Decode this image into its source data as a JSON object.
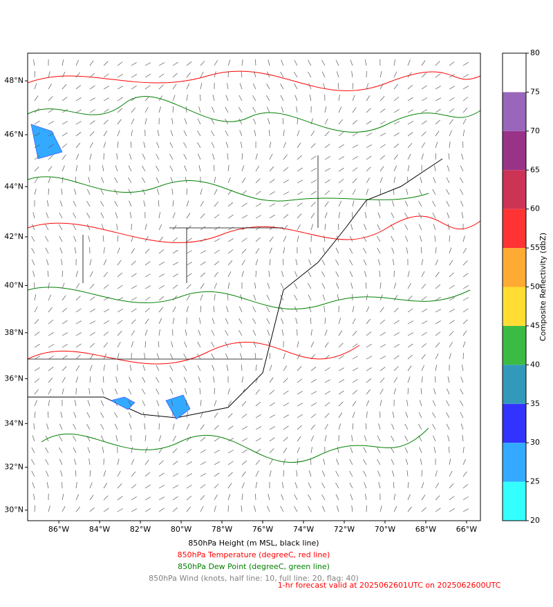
{
  "map": {
    "lon_range": [
      -87.53,
      -65.32
    ],
    "lat_range": [
      29.5,
      49.0
    ],
    "lon_ticks": [
      {
        "value": -86,
        "label": "86°W"
      },
      {
        "value": -84,
        "label": "84°W"
      },
      {
        "value": -82,
        "label": "82°W"
      },
      {
        "value": -80,
        "label": "80°W"
      },
      {
        "value": -78,
        "label": "78°W"
      },
      {
        "value": -76,
        "label": "76°W"
      },
      {
        "value": -74,
        "label": "74°W"
      },
      {
        "value": -72,
        "label": "72°W"
      },
      {
        "value": -70,
        "label": "70°W"
      },
      {
        "value": -68,
        "label": "68°W"
      },
      {
        "value": -66,
        "label": "66°W"
      }
    ],
    "lat_ticks": [
      {
        "value": 48,
        "label": "48°N"
      },
      {
        "value": 46,
        "label": "46°N"
      },
      {
        "value": 44,
        "label": "44°N"
      },
      {
        "value": 42,
        "label": "42°N"
      },
      {
        "value": 40,
        "label": "40°N"
      },
      {
        "value": 38,
        "label": "38°N"
      },
      {
        "value": 36,
        "label": "36°N"
      },
      {
        "value": 34,
        "label": "34°N"
      },
      {
        "value": 32,
        "label": "32°N"
      },
      {
        "value": 30,
        "label": "30°N"
      }
    ]
  },
  "colorbar": {
    "label": "Composite Reflectivity (dbZ)",
    "ticks": [
      20,
      25,
      30,
      35,
      40,
      45,
      50,
      55,
      60,
      65,
      70,
      75,
      80
    ],
    "colors": [
      "#33ffff",
      "#33aaff",
      "#3333ff",
      "#3399bb",
      "#3bbb44",
      "#ffdd33",
      "#ffaa33",
      "#ff3333",
      "#cc3355",
      "#993388",
      "#9966bb",
      "#ffffff"
    ]
  },
  "captions": [
    {
      "text": "850hPa Height (m MSL, black line)",
      "color": "#000000"
    },
    {
      "text": "850hPa Temperature (degreeC, red line)",
      "color": "#ff0000"
    },
    {
      "text": "850hPa Dew Point (degreeC, green line)",
      "color": "#008000"
    },
    {
      "text": "850hPa Wind (knots, half line: 10, full line: 20, flag: 40)",
      "color": "#808080"
    }
  ],
  "forecast": {
    "text": "1-hr forecast valid at 2025062601UTC on 2025062600UTC",
    "color": "#ff0000"
  }
}
